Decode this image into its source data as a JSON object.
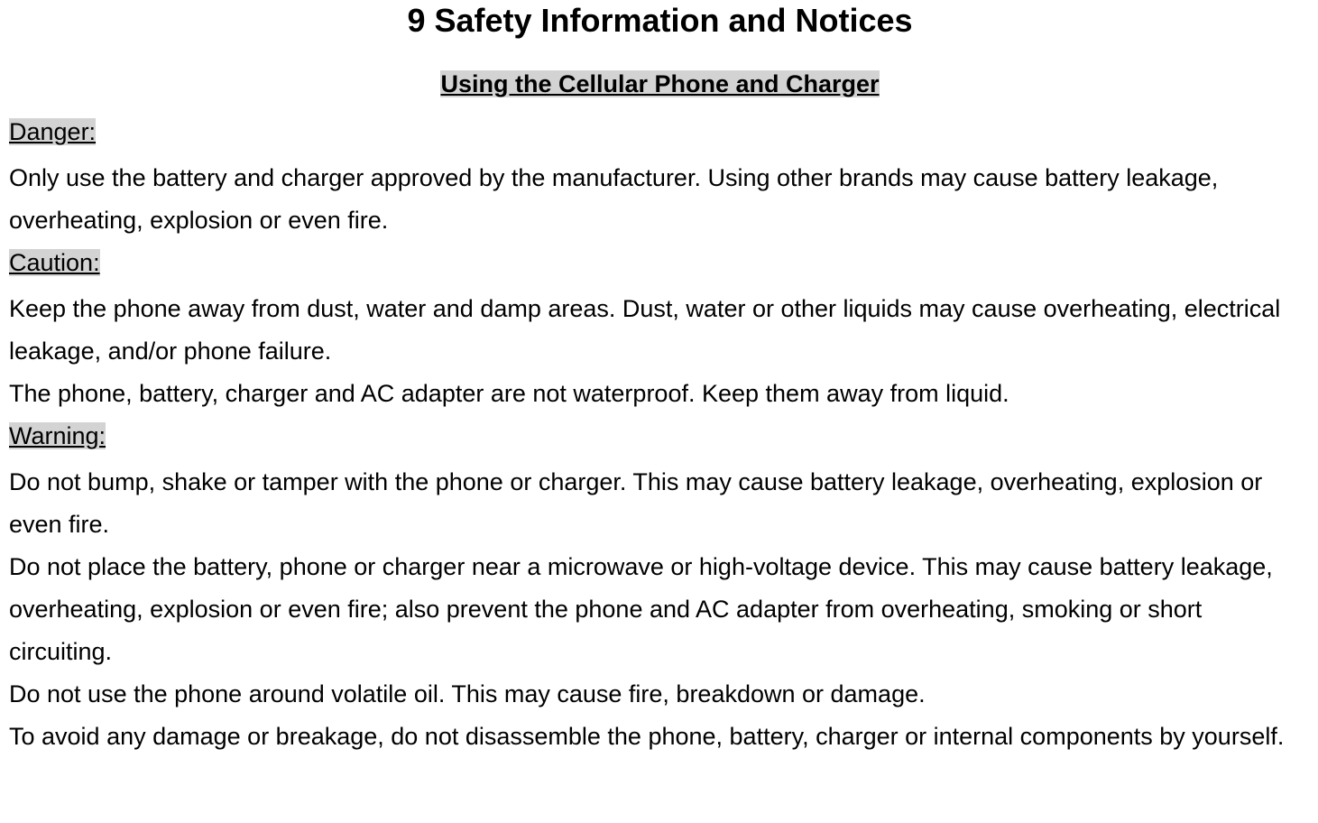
{
  "title": "9  Safety Information and Notices",
  "subtitle": "Using the Cellular Phone and Charger",
  "sections": {
    "danger": {
      "label": "Danger:",
      "p1": "Only use the battery and charger approved by the manufacturer. Using other brands may cause battery leakage, overheating, explosion or even fire."
    },
    "caution": {
      "label": "Caution:",
      "p1": "Keep the phone away from dust, water and damp areas. Dust, water or other liquids may cause overheating, electrical leakage, and/or phone failure.",
      "p2": "The phone, battery, charger and AC adapter are not waterproof. Keep them away from liquid."
    },
    "warning": {
      "label": "Warning:",
      "p1": "Do not bump, shake or tamper with the phone or charger. This may cause battery leakage, overheating, explosion or even fire.",
      "p2": "Do not place the battery, phone or charger near a microwave or high-voltage device.    This may cause battery leakage, overheating, explosion or even fire; also prevent the phone and AC adapter from overheating, smoking or short circuiting.",
      "p3": "Do not use the phone around volatile oil. This may cause fire, breakdown or damage.",
      "p4": "To avoid any damage or breakage, do not disassemble the phone, battery, charger or internal components by yourself."
    }
  },
  "colors": {
    "highlight_bg": "#d3d3d3",
    "text": "#000000",
    "page_bg": "#ffffff"
  },
  "typography": {
    "title_fontsize": 36,
    "subtitle_fontsize": 27,
    "body_fontsize": 27,
    "line_height": 47,
    "font_family": "Arial"
  }
}
